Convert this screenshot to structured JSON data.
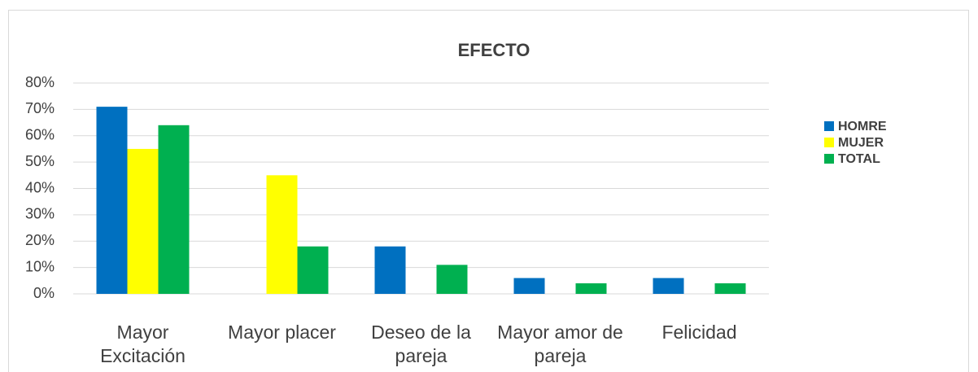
{
  "chart_data": {
    "type": "bar",
    "title": "EFECTO",
    "categories": [
      "Mayor Excitación",
      "Mayor placer",
      "Deseo de la pareja",
      "Mayor amor de pareja",
      "Felicidad"
    ],
    "series": [
      {
        "name": "HOMRE",
        "color": "#0070c0",
        "values": [
          71,
          0,
          18,
          6,
          6
        ]
      },
      {
        "name": "MUJER",
        "color": "#ffff00",
        "values": [
          55,
          45,
          0,
          0,
          0
        ]
      },
      {
        "name": "TOTAL",
        "color": "#00b050",
        "values": [
          64,
          18,
          11,
          4,
          4
        ]
      }
    ],
    "ylim": [
      0,
      80
    ],
    "yticks": [
      {
        "value": 0,
        "label": "0%"
      },
      {
        "value": 10,
        "label": "10%"
      },
      {
        "value": 20,
        "label": "20%"
      },
      {
        "value": 30,
        "label": "30%"
      },
      {
        "value": 40,
        "label": "40%"
      },
      {
        "value": 50,
        "label": "50%"
      },
      {
        "value": 60,
        "label": "60%"
      },
      {
        "value": 70,
        "label": "70%"
      },
      {
        "value": 80,
        "label": "80%"
      }
    ],
    "grid": true,
    "legend": "right"
  }
}
